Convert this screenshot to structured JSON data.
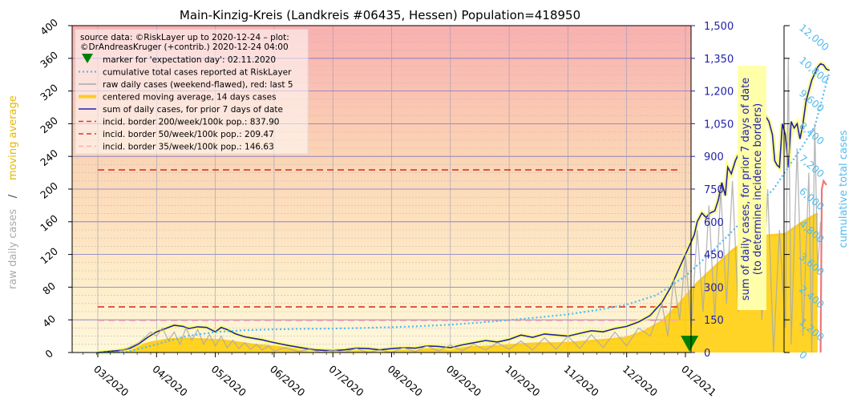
{
  "chart_data": {
    "type": "line",
    "title": "Main-Kinzig-Kreis (Landkreis #06435, Hessen) Population=418950",
    "ylabel_left": "raw daily cases",
    "ylabel_left_sep": "/",
    "ylabel_left_2": "moving average",
    "ylabel_right": "sum of daily cases, for prior 7 days of date",
    "ylabel_right_2": "(to determine incidence borders)",
    "ylabel_right_outer": "cumulative total cases",
    "x_ticks": [
      "03/2020",
      "04/2020",
      "05/2020",
      "06/2020",
      "07/2020",
      "08/2020",
      "09/2020",
      "10/2020",
      "11/2020",
      "12/2020",
      "01/2021"
    ],
    "ylim_left": [
      0,
      400
    ],
    "yticks_left": [
      "0",
      "40",
      "80",
      "120",
      "160",
      "200",
      "240",
      "280",
      "320",
      "360",
      "400"
    ],
    "ylim_right": [
      0,
      1500
    ],
    "yticks_right": [
      "0",
      "150",
      "300",
      "450",
      "600",
      "750",
      "900",
      "1,050",
      "1,200",
      "1,350",
      "1,500"
    ],
    "ylim_right_outer": [
      0,
      12000
    ],
    "yticks_right_outer": [
      "0",
      "1,200",
      "2,400",
      "3,600",
      "4,800",
      "6,000",
      "7,200",
      "8,400",
      "9,600",
      "10,800",
      "12,000"
    ],
    "grid": true,
    "legend_position": "top-left",
    "source_line_1": "source data: ©RiskLayer up to 2020-12-24 – plot:",
    "source_line_2": "©DrAndreasKruger (+contrib.) 2020-12-24 04:00",
    "legend": [
      {
        "label": "marker for 'expectation day': 02.11.2020",
        "color": "#008000",
        "style": "marker"
      },
      {
        "label": "cumulative total cases reported at RiskLayer",
        "color": "#55bbee",
        "style": "dotted"
      },
      {
        "label": "raw daily cases (weekend-flawed), red: last 5",
        "color": "#aaaaaa",
        "style": "line"
      },
      {
        "label": "centered moving average, 14 days cases",
        "color": "#ffcc22",
        "style": "thick"
      },
      {
        "label": "sum of daily cases, for prior 7 days of date",
        "color": "#2222aa",
        "style": "line"
      },
      {
        "label": "incid. border 200/week/100k pop.: 837.90",
        "color": "#dd3322",
        "style": "dashed"
      },
      {
        "label": "incid. border 50/week/100k pop.: 209.47",
        "color": "#dd3322",
        "style": "dashed"
      },
      {
        "label": "incid. border 35/week/100k pop.: 146.63",
        "color": "#ffaaaa",
        "style": "dashed"
      }
    ],
    "incidence_borders": [
      {
        "name": "200/week/100k",
        "value": 837.9,
        "color": "#dd3322"
      },
      {
        "name": "50/week/100k",
        "value": 209.47,
        "color": "#dd3322"
      },
      {
        "name": "35/week/100k",
        "value": 146.63,
        "color": "#ffaaaa"
      }
    ],
    "expectation_day_month": 10.07,
    "series": [
      {
        "name": "sum of daily cases, for prior 7 days of date",
        "axis": "right",
        "color": "#2222aa",
        "points": [
          [
            0.0,
            0
          ],
          [
            0.2,
            5
          ],
          [
            0.4,
            10
          ],
          [
            0.55,
            20
          ],
          [
            0.7,
            40
          ],
          [
            0.85,
            70
          ],
          [
            1.0,
            95
          ],
          [
            1.15,
            110
          ],
          [
            1.3,
            125
          ],
          [
            1.45,
            120
          ],
          [
            1.55,
            110
          ],
          [
            1.7,
            118
          ],
          [
            1.85,
            115
          ],
          [
            2.0,
            95
          ],
          [
            2.1,
            115
          ],
          [
            2.2,
            105
          ],
          [
            2.35,
            85
          ],
          [
            2.5,
            72
          ],
          [
            2.65,
            65
          ],
          [
            2.8,
            58
          ],
          [
            2.95,
            48
          ],
          [
            3.1,
            40
          ],
          [
            3.25,
            32
          ],
          [
            3.4,
            25
          ],
          [
            3.55,
            18
          ],
          [
            3.7,
            12
          ],
          [
            3.85,
            10
          ],
          [
            4.0,
            9
          ],
          [
            4.2,
            12
          ],
          [
            4.4,
            20
          ],
          [
            4.6,
            18
          ],
          [
            4.8,
            12
          ],
          [
            5.0,
            18
          ],
          [
            5.2,
            22
          ],
          [
            5.4,
            20
          ],
          [
            5.6,
            30
          ],
          [
            5.8,
            28
          ],
          [
            6.0,
            22
          ],
          [
            6.2,
            35
          ],
          [
            6.4,
            45
          ],
          [
            6.6,
            55
          ],
          [
            6.8,
            48
          ],
          [
            7.0,
            60
          ],
          [
            7.2,
            80
          ],
          [
            7.4,
            70
          ],
          [
            7.6,
            85
          ],
          [
            7.8,
            80
          ],
          [
            8.0,
            75
          ],
          [
            8.2,
            88
          ],
          [
            8.4,
            100
          ],
          [
            8.6,
            95
          ],
          [
            8.8,
            110
          ],
          [
            9.0,
            120
          ],
          [
            9.2,
            140
          ],
          [
            9.4,
            170
          ],
          [
            9.6,
            230
          ],
          [
            9.75,
            300
          ],
          [
            9.85,
            360
          ],
          [
            9.95,
            420
          ],
          [
            10.05,
            480
          ],
          [
            10.15,
            540
          ],
          [
            10.2,
            600
          ],
          [
            10.28,
            640
          ],
          [
            10.35,
            620
          ],
          [
            10.42,
            640
          ],
          [
            10.5,
            650
          ],
          [
            10.56,
            700
          ],
          [
            10.62,
            780
          ],
          [
            10.68,
            720
          ],
          [
            10.72,
            850
          ],
          [
            10.78,
            820
          ],
          [
            10.85,
            880
          ],
          [
            10.92,
            920
          ],
          [
            10.98,
            960
          ],
          [
            11.05,
            940
          ],
          [
            11.1,
            1000
          ],
          [
            11.15,
            1020
          ],
          [
            11.2,
            1040
          ],
          [
            11.25,
            1080
          ],
          [
            11.3,
            1100
          ],
          [
            11.35,
            1090
          ],
          [
            11.42,
            1060
          ],
          [
            11.48,
            1000
          ],
          [
            11.52,
            880
          ],
          [
            11.56,
            860
          ],
          [
            11.6,
            850
          ],
          [
            11.65,
            1050
          ],
          [
            11.7,
            1000
          ],
          [
            11.75,
            850
          ],
          [
            11.8,
            1060
          ],
          [
            11.85,
            1030
          ],
          [
            11.9,
            1050
          ],
          [
            11.95,
            980
          ],
          [
            12.0,
            1050
          ],
          [
            12.05,
            1150
          ],
          [
            12.1,
            1200
          ],
          [
            12.15,
            1250
          ],
          [
            12.2,
            1280
          ],
          [
            12.25,
            1310
          ],
          [
            12.3,
            1325
          ],
          [
            12.35,
            1320
          ],
          [
            12.4,
            1300
          ],
          [
            12.45,
            1295
          ]
        ]
      },
      {
        "name": "centered moving average, 14 days cases",
        "axis": "left",
        "color": "#ffcc22",
        "points": [
          [
            0.0,
            0
          ],
          [
            0.3,
            2
          ],
          [
            0.6,
            6
          ],
          [
            0.9,
            12
          ],
          [
            1.2,
            16
          ],
          [
            1.5,
            17
          ],
          [
            1.8,
            16
          ],
          [
            2.1,
            15
          ],
          [
            2.4,
            12
          ],
          [
            2.7,
            9
          ],
          [
            3.0,
            7
          ],
          [
            3.3,
            5
          ],
          [
            3.6,
            3
          ],
          [
            3.9,
            2
          ],
          [
            4.2,
            2
          ],
          [
            4.5,
            2
          ],
          [
            4.8,
            2
          ],
          [
            5.1,
            3
          ],
          [
            5.4,
            3
          ],
          [
            5.7,
            4
          ],
          [
            6.0,
            4
          ],
          [
            6.3,
            6
          ],
          [
            6.6,
            7
          ],
          [
            6.9,
            8
          ],
          [
            7.2,
            10
          ],
          [
            7.5,
            11
          ],
          [
            7.8,
            11
          ],
          [
            8.1,
            12
          ],
          [
            8.4,
            14
          ],
          [
            8.7,
            16
          ],
          [
            9.0,
            18
          ],
          [
            9.3,
            26
          ],
          [
            9.6,
            38
          ],
          [
            9.9,
            60
          ],
          [
            10.2,
            85
          ],
          [
            10.5,
            105
          ],
          [
            10.8,
            125
          ],
          [
            11.1,
            140
          ],
          [
            11.4,
            143
          ],
          [
            11.7,
            145
          ],
          [
            12.0,
            160
          ],
          [
            12.25,
            170
          ]
        ]
      },
      {
        "name": "raw daily cases (weekend-flawed), red: last 5",
        "axis": "left",
        "color": "#aaaaaa",
        "points": [
          [
            0.0,
            0
          ],
          [
            0.3,
            0
          ],
          [
            0.5,
            5
          ],
          [
            0.7,
            12
          ],
          [
            0.9,
            25
          ],
          [
            1.0,
            20
          ],
          [
            1.1,
            30
          ],
          [
            1.2,
            15
          ],
          [
            1.3,
            25
          ],
          [
            1.4,
            10
          ],
          [
            1.5,
            30
          ],
          [
            1.6,
            15
          ],
          [
            1.7,
            28
          ],
          [
            1.8,
            10
          ],
          [
            1.9,
            22
          ],
          [
            2.0,
            8
          ],
          [
            2.1,
            20
          ],
          [
            2.2,
            6
          ],
          [
            2.3,
            15
          ],
          [
            2.4,
            5
          ],
          [
            2.5,
            12
          ],
          [
            2.6,
            4
          ],
          [
            2.7,
            10
          ],
          [
            2.8,
            3
          ],
          [
            2.9,
            8
          ],
          [
            3.0,
            2
          ],
          [
            3.2,
            6
          ],
          [
            3.4,
            1
          ],
          [
            3.6,
            4
          ],
          [
            3.8,
            0
          ],
          [
            4.0,
            3
          ],
          [
            4.2,
            0
          ],
          [
            4.4,
            5
          ],
          [
            4.6,
            0
          ],
          [
            4.8,
            3
          ],
          [
            5.0,
            0
          ],
          [
            5.2,
            6
          ],
          [
            5.4,
            1
          ],
          [
            5.6,
            8
          ],
          [
            5.8,
            2
          ],
          [
            6.0,
            9
          ],
          [
            6.2,
            2
          ],
          [
            6.4,
            10
          ],
          [
            6.6,
            3
          ],
          [
            6.8,
            12
          ],
          [
            7.0,
            4
          ],
          [
            7.2,
            14
          ],
          [
            7.4,
            3
          ],
          [
            7.6,
            18
          ],
          [
            7.8,
            4
          ],
          [
            8.0,
            20
          ],
          [
            8.2,
            5
          ],
          [
            8.4,
            22
          ],
          [
            8.6,
            6
          ],
          [
            8.8,
            25
          ],
          [
            9.0,
            8
          ],
          [
            9.2,
            30
          ],
          [
            9.4,
            20
          ],
          [
            9.6,
            60
          ],
          [
            9.7,
            20
          ],
          [
            9.8,
            90
          ],
          [
            9.9,
            40
          ],
          [
            10.0,
            120
          ],
          [
            10.1,
            30
          ],
          [
            10.2,
            150
          ],
          [
            10.3,
            50
          ],
          [
            10.4,
            180
          ],
          [
            10.5,
            40
          ],
          [
            10.6,
            200
          ],
          [
            10.7,
            60
          ],
          [
            10.8,
            210
          ],
          [
            10.9,
            50
          ],
          [
            11.0,
            230
          ],
          [
            11.1,
            60
          ],
          [
            11.2,
            240
          ],
          [
            11.3,
            40
          ],
          [
            11.4,
            200
          ],
          [
            11.5,
            0
          ],
          [
            11.6,
            150
          ],
          [
            11.7,
            30
          ],
          [
            11.75,
            360
          ],
          [
            11.8,
            10
          ],
          [
            11.9,
            250
          ],
          [
            12.0,
            20
          ],
          [
            12.1,
            220
          ],
          [
            12.15,
            0
          ],
          [
            12.2,
            280
          ],
          [
            12.25,
            100
          ],
          [
            12.3,
            160
          ]
        ]
      },
      {
        "name": "raw daily cases, last 5",
        "axis": "left",
        "color": "#ee7777",
        "points": [
          [
            12.3,
            0
          ],
          [
            12.32,
            200
          ],
          [
            12.35,
            210
          ],
          [
            12.4,
            205
          ]
        ]
      },
      {
        "name": "cumulative total cases reported at RiskLayer",
        "axis": "right_outer",
        "color": "#55bbee",
        "points": [
          [
            0.0,
            0
          ],
          [
            0.5,
            20
          ],
          [
            1.0,
            300
          ],
          [
            1.5,
            600
          ],
          [
            2.0,
            750
          ],
          [
            2.5,
            820
          ],
          [
            3.0,
            850
          ],
          [
            3.5,
            870
          ],
          [
            4.0,
            880
          ],
          [
            4.5,
            900
          ],
          [
            5.0,
            930
          ],
          [
            5.5,
            970
          ],
          [
            6.0,
            1020
          ],
          [
            6.5,
            1100
          ],
          [
            7.0,
            1190
          ],
          [
            7.5,
            1290
          ],
          [
            8.0,
            1400
          ],
          [
            8.5,
            1560
          ],
          [
            9.0,
            1760
          ],
          [
            9.5,
            2100
          ],
          [
            10.0,
            2800
          ],
          [
            10.5,
            3800
          ],
          [
            11.0,
            4900
          ],
          [
            11.5,
            6000
          ],
          [
            12.0,
            7600
          ],
          [
            12.2,
            8300
          ],
          [
            12.45,
            10300
          ]
        ]
      }
    ]
  }
}
